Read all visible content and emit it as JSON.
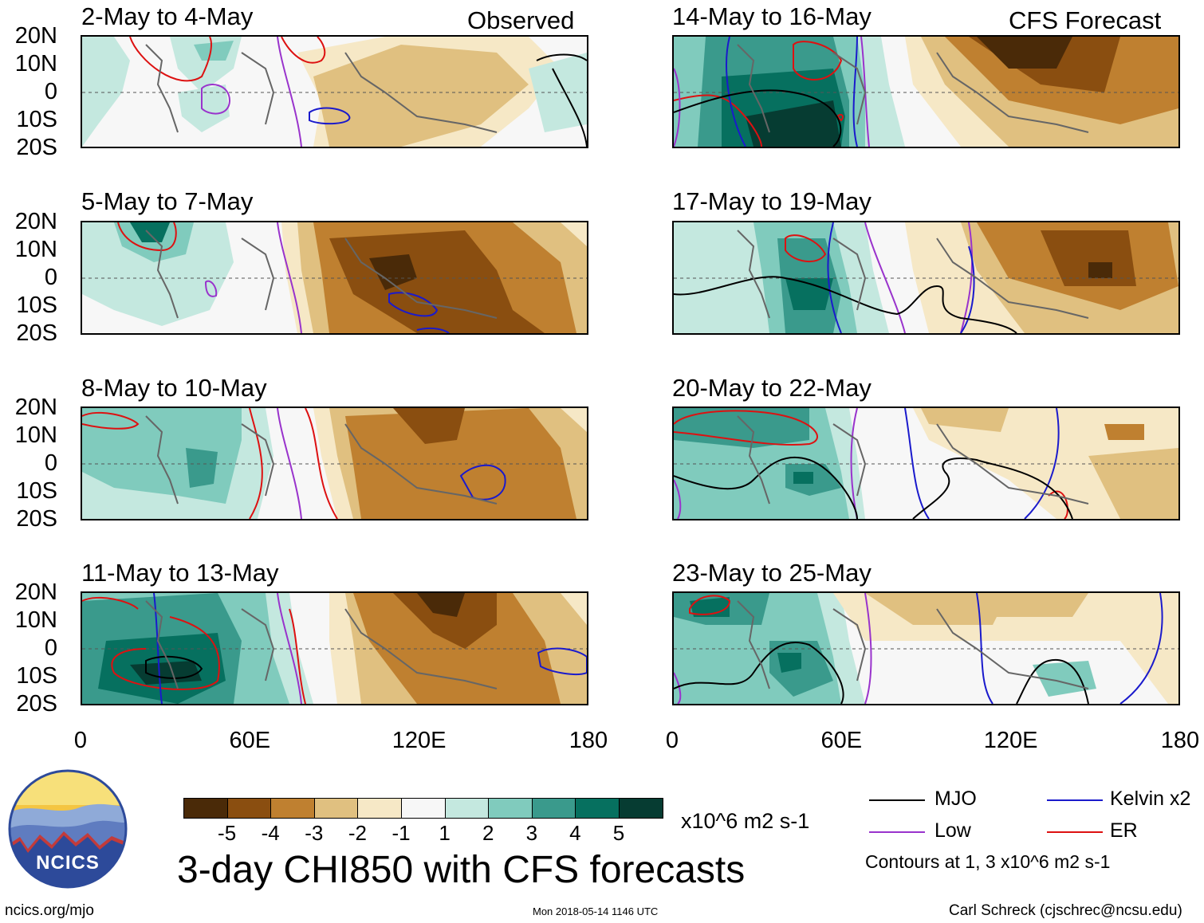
{
  "headers": {
    "left": "Observed",
    "right": "CFS Forecast"
  },
  "panels": [
    {
      "title": "2-May to 4-May"
    },
    {
      "title": "5-May to 7-May"
    },
    {
      "title": "8-May to 10-May"
    },
    {
      "title": "11-May to 13-May"
    },
    {
      "title": "14-May to 16-May"
    },
    {
      "title": "17-May to 19-May"
    },
    {
      "title": "20-May to 22-May"
    },
    {
      "title": "23-May to 25-May"
    }
  ],
  "y_axis": {
    "labels": [
      "20N",
      "10N",
      "0",
      "10S",
      "20S"
    ]
  },
  "x_axis": {
    "labels": [
      "0",
      "60E",
      "120E",
      "180"
    ]
  },
  "colorbar": {
    "colors": [
      "#4a2a08",
      "#8a4e10",
      "#bf8030",
      "#e0c080",
      "#f6e8c6",
      "#f7f7f7",
      "#c4e8df",
      "#80cbbd",
      "#3a9a8c",
      "#06705f",
      "#063c32"
    ],
    "tick_labels": [
      "-5",
      "-4",
      "-3",
      "-2",
      "-1",
      "1",
      "2",
      "3",
      "4",
      "5"
    ],
    "units": "x10^6 m2 s-1"
  },
  "main_title": "3-day CHI850 with CFS forecasts",
  "legend": {
    "items": [
      {
        "label": "MJO",
        "color": "#000000"
      },
      {
        "label": "Kelvin x2",
        "color": "#1a1acc"
      },
      {
        "label": "Low",
        "color": "#9933cc"
      },
      {
        "label": "ER",
        "color": "#dd1111"
      }
    ],
    "note": "Contours at 1, 3 x10^6 m2 s-1"
  },
  "logo": {
    "text": "NCICS"
  },
  "footer": {
    "url": "ncics.org/mjo",
    "timestamp": "Mon 2018-05-14 1146 UTC",
    "credit": "Carl Schreck (cjschrec@ncsu.edu)"
  }
}
